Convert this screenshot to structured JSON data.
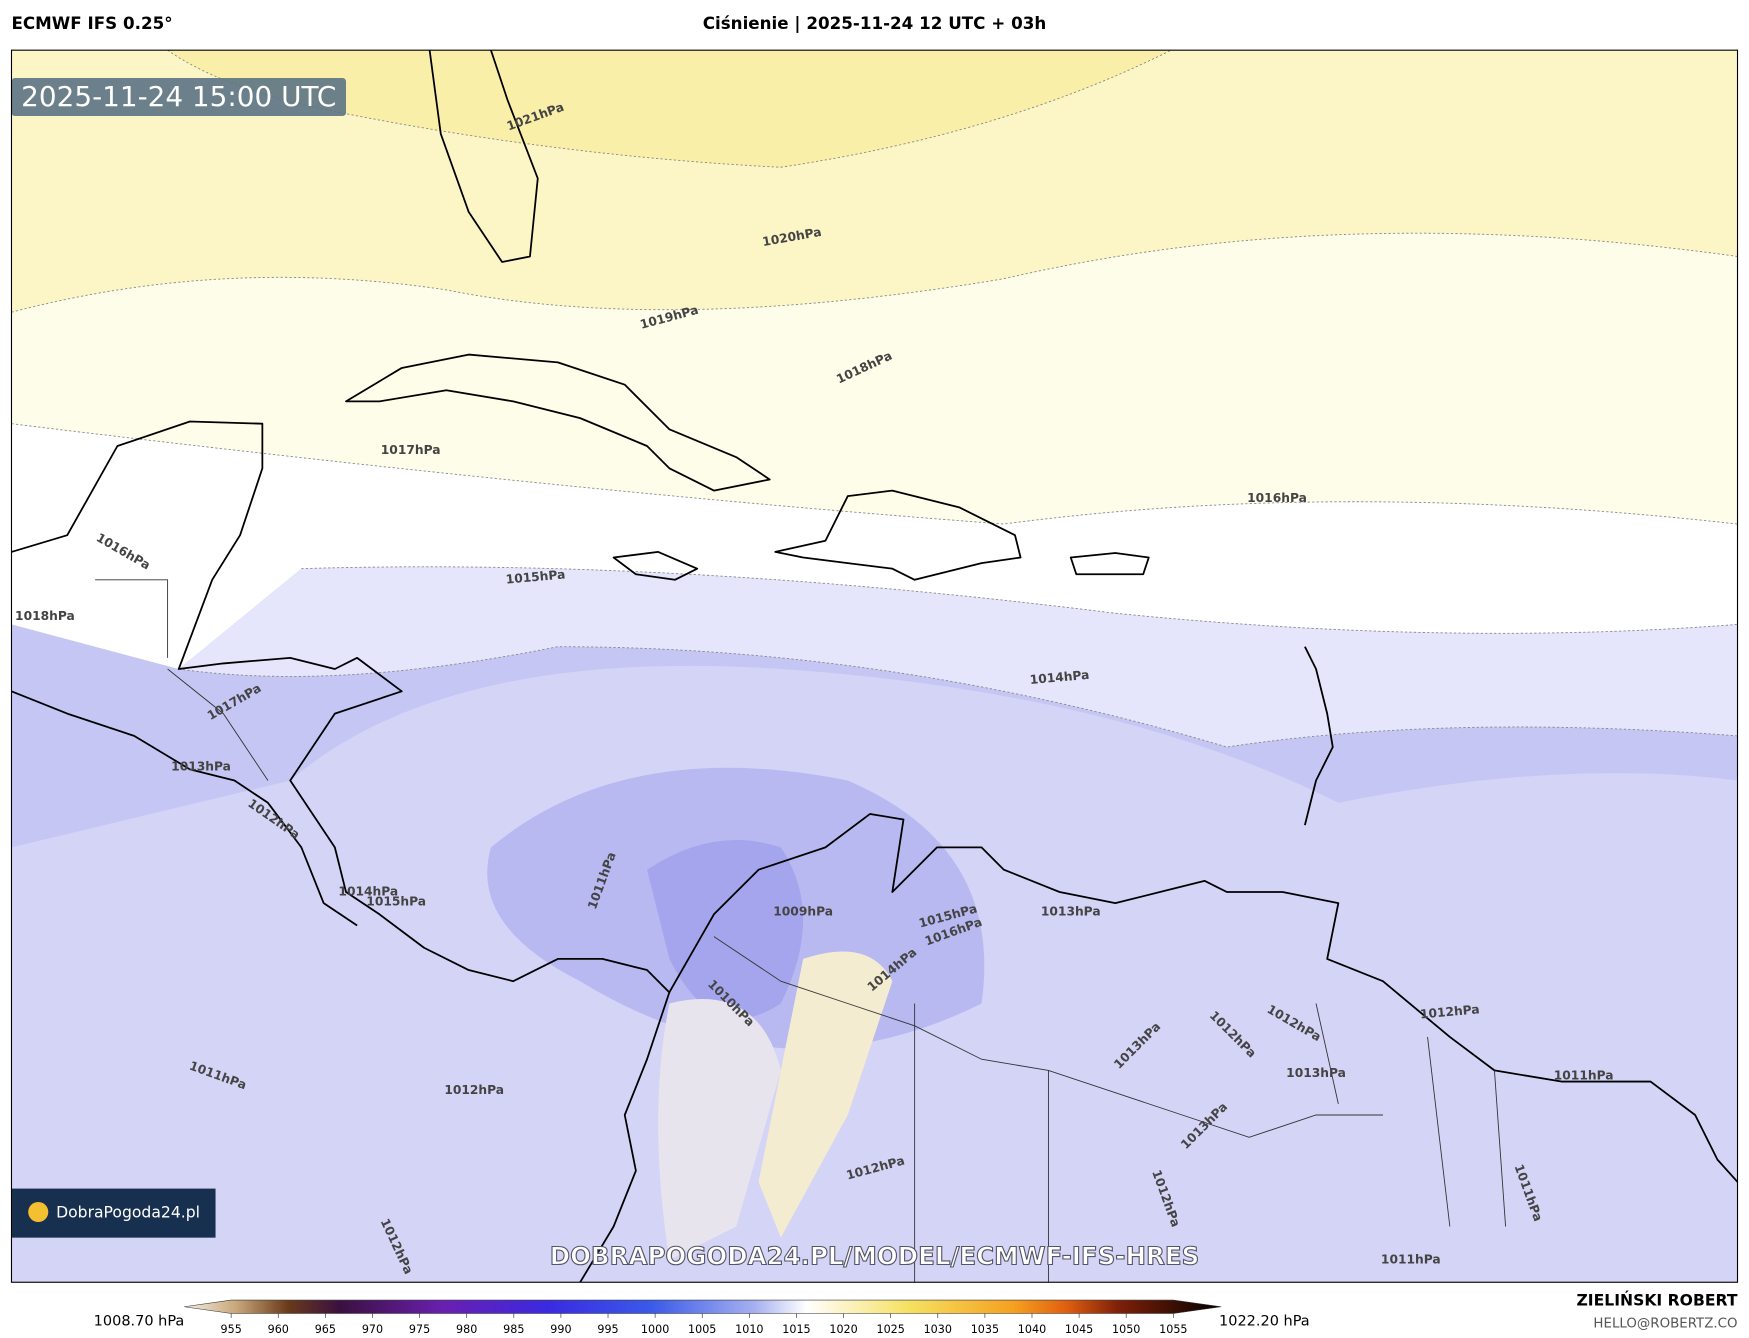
{
  "header": {
    "model": "ECMWF IFS 0.25°",
    "title": "Ciśnienie | 2025-11-24 12 UTC + 03h"
  },
  "map": {
    "timestamp": "2025-11-24 15:00 UTC",
    "watermark": "DOBRAPOGODA24.PL/MODEL/ECMWF-IFS-HRES",
    "logo": "DobraPogoda24.pl",
    "isobar_labels": [
      "1021hPa",
      "1020hPa",
      "1019hPa",
      "1018hPa",
      "1017hPa",
      "1016hPa",
      "1016hPa",
      "1015hPa",
      "1018hPa",
      "1014hPa",
      "1017hPa",
      "1013hPa",
      "1012hPa",
      "1011hPa",
      "1014hPa",
      "1015hPa",
      "1009hPa",
      "1015hPa",
      "1016hPa",
      "1013hPa",
      "1014hPa",
      "1010hPa",
      "1012hPa",
      "1012hPa",
      "1012hPa",
      "1013hPa",
      "1013hPa",
      "1011hPa",
      "1012hPa",
      "1011hPa",
      "1013hPa",
      "1012hPa",
      "1012hPa",
      "1011hPa",
      "1012hPa",
      "1011hPa"
    ]
  },
  "colorbar": {
    "min_label": "1008.70 hPa",
    "max_label": "1022.20 hPa",
    "ticks": [
      955,
      960,
      965,
      970,
      975,
      980,
      985,
      990,
      995,
      1000,
      1005,
      1010,
      1015,
      1020,
      1025,
      1030,
      1035,
      1040,
      1045,
      1050,
      1055
    ]
  },
  "footer": {
    "author": "ZIELIŃSKI ROBERT",
    "email": "HELLO@ROBERTZ.CO"
  }
}
